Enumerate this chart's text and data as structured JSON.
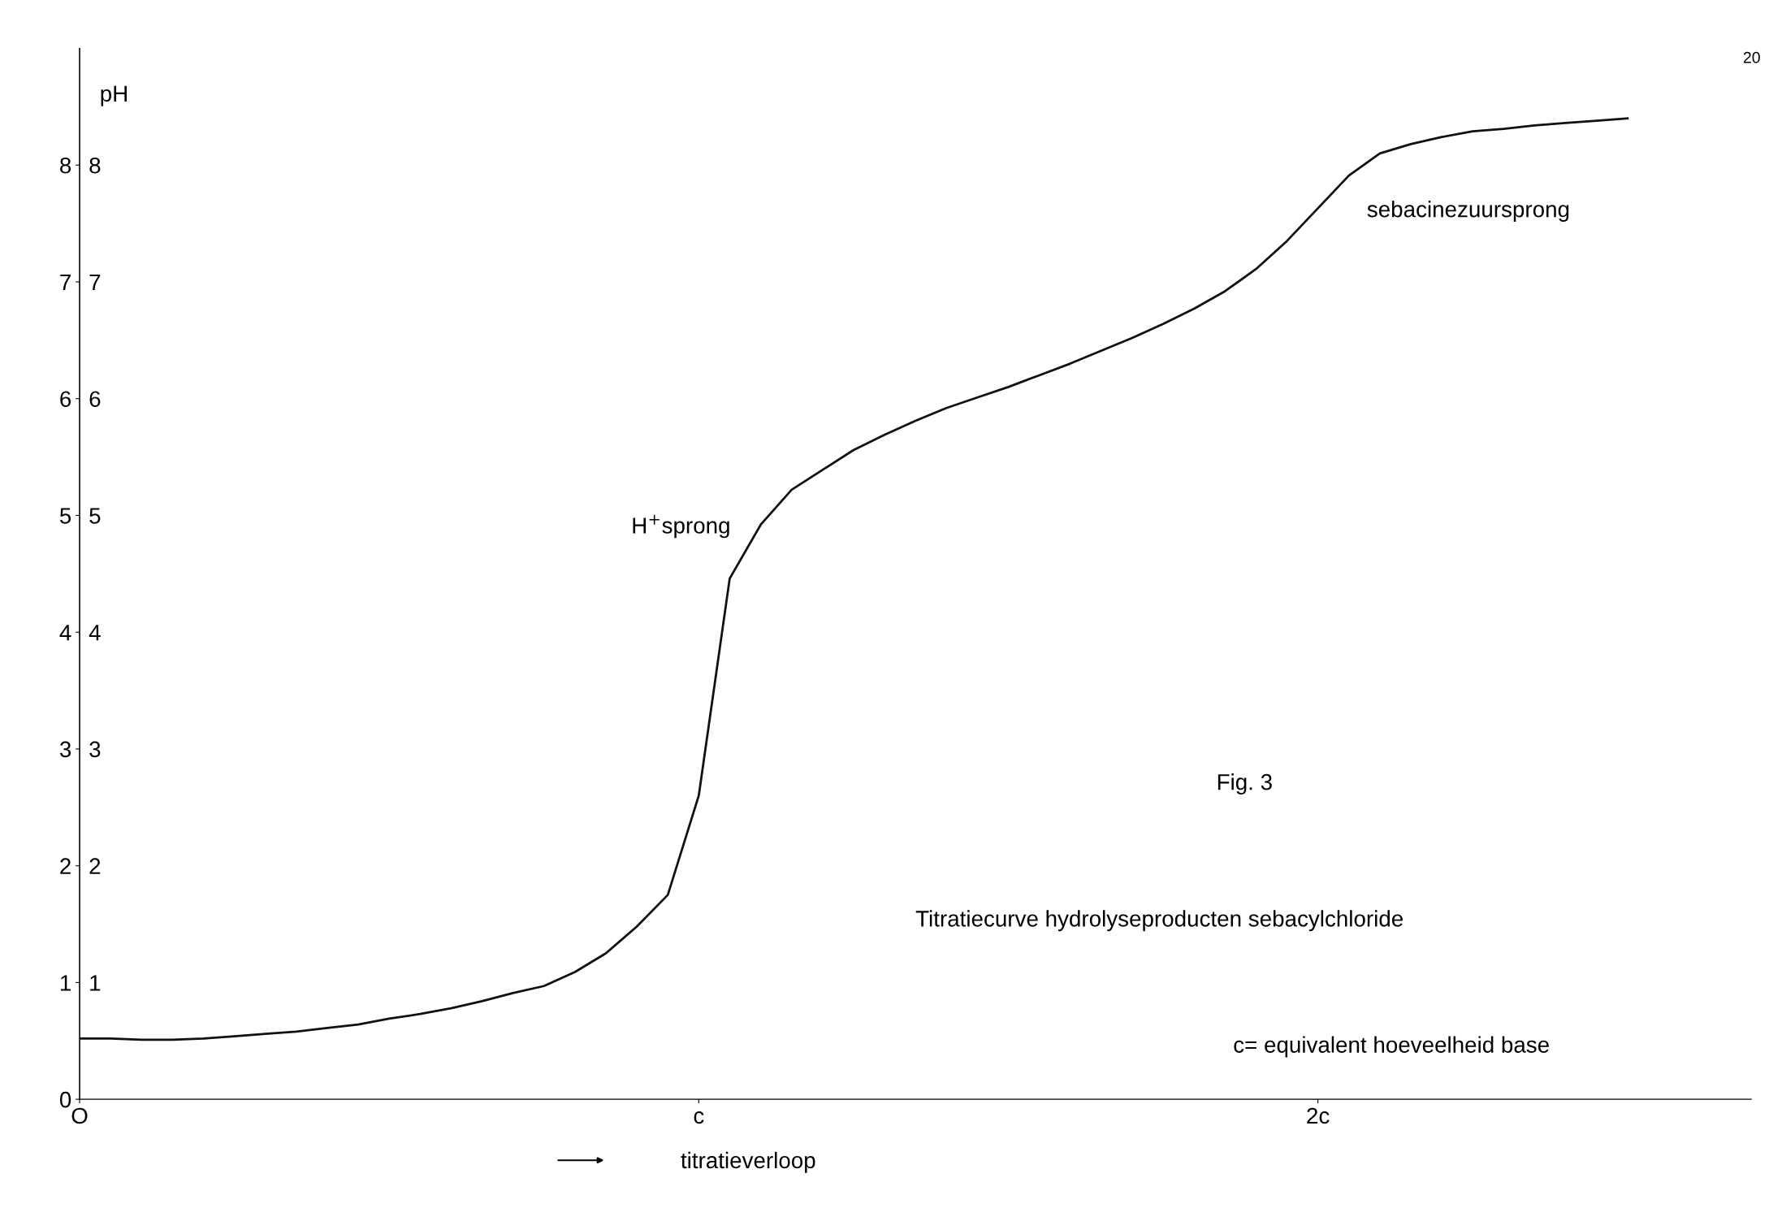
{
  "chart_data": {
    "type": "line",
    "y2label": "pH",
    "xlabel": "titratieverloop",
    "categories": [
      "O",
      null,
      null,
      null,
      null,
      null,
      null,
      null,
      null,
      null,
      null,
      null,
      null,
      null,
      null,
      null,
      null,
      null,
      null,
      null,
      "c",
      null,
      null,
      null,
      null,
      null,
      null,
      null,
      null,
      null,
      null,
      null,
      null,
      null,
      null,
      null,
      null,
      null,
      null,
      null,
      "2c",
      null,
      null,
      null,
      null,
      null,
      null,
      null,
      null,
      null,
      null,
      null,
      null,
      null,
      null
    ],
    "series": [
      {
        "color": "#111111",
        "values": [
          0.52,
          0.52,
          0.51,
          0.51,
          0.52,
          0.54,
          0.56,
          0.58,
          0.61,
          0.64,
          0.69,
          0.73,
          0.78,
          0.84,
          0.91,
          0.97,
          1.09,
          1.25,
          1.48,
          1.75,
          2.6,
          4.46,
          4.92,
          5.22,
          5.39,
          5.56,
          5.69,
          5.81,
          5.92,
          6.01,
          6.1,
          6.2,
          6.3,
          6.41,
          6.52,
          6.64,
          6.77,
          6.92,
          7.11,
          7.35,
          7.63,
          7.91,
          8.1,
          8.18,
          8.24,
          8.29,
          8.31,
          8.34,
          8.36,
          8.38,
          8.4,
          null,
          null,
          null,
          null
        ]
      }
    ],
    "ylim": [
      0,
      9
    ],
    "yticks": [
      0,
      1,
      2,
      3,
      4,
      5,
      6,
      7,
      8
    ],
    "y2lim": [
      0,
      9
    ],
    "y2ticks": [
      1,
      2,
      3,
      4,
      5,
      6,
      7,
      8
    ],
    "line_style": "solid",
    "marker": "none",
    "grid": false,
    "legend": false,
    "annotations": [
      "H$^{+}$sprong",
      "sebacinezuursprong",
      "Fig. 3",
      "Titratiecurve hydrolyseproducten sebacylchloride",
      "c= equivalent hoeveelheid base",
      "20"
    ]
  }
}
